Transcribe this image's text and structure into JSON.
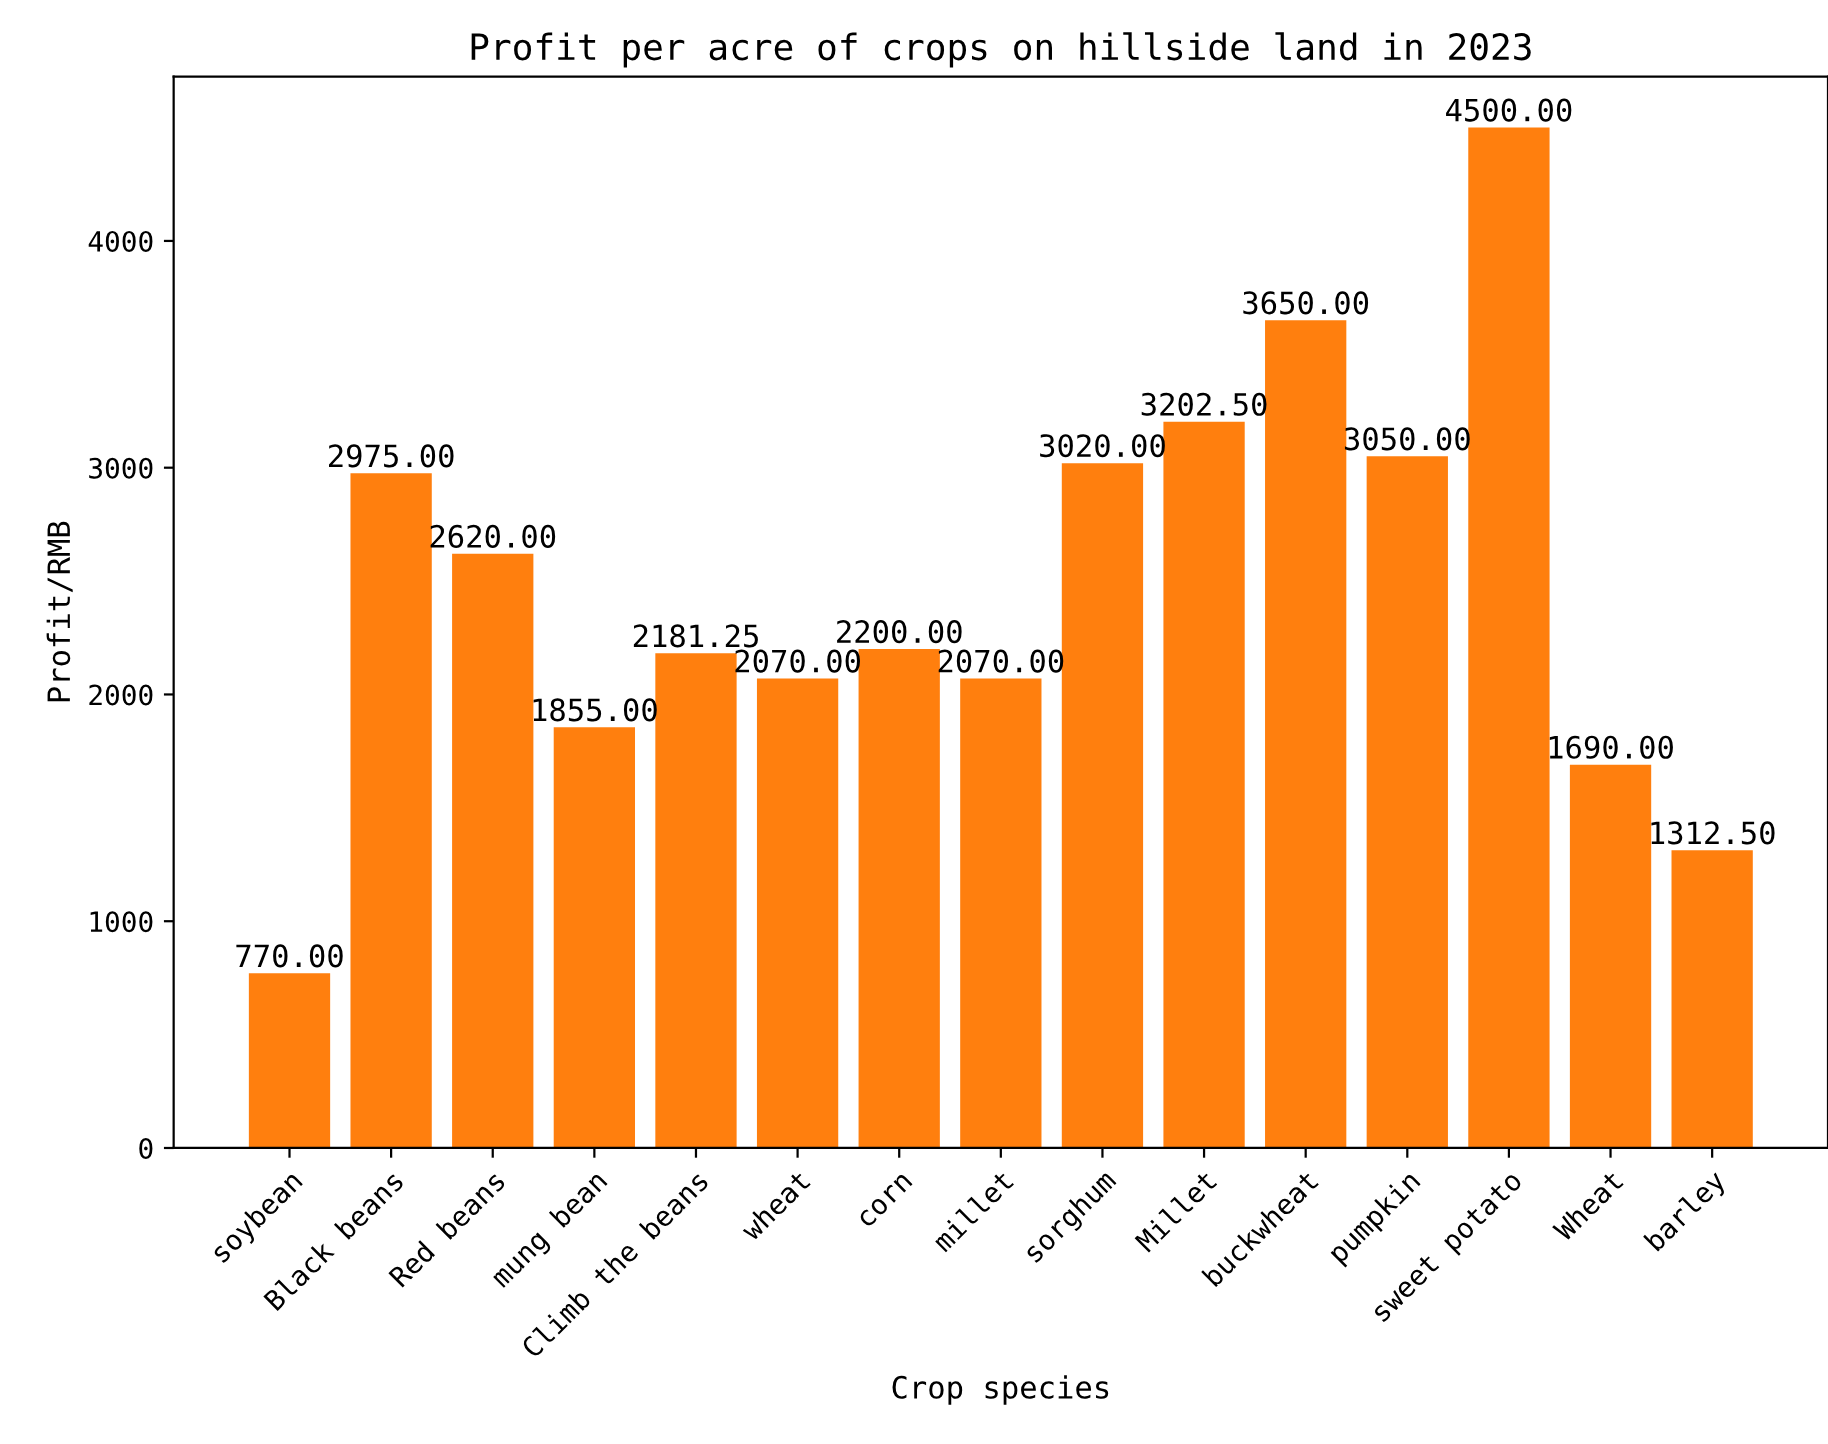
{
  "chart_data": {
    "type": "bar",
    "title": "Profit per acre of crops on hillside land in 2023",
    "xlabel": "Crop species",
    "ylabel": "Profit/RMB",
    "categories": [
      "soybean",
      "Black beans",
      "Red beans",
      "mung bean",
      "Climb the beans",
      "wheat",
      "corn",
      "millet",
      "sorghum",
      "Millet",
      "buckwheat",
      "pumpkin",
      "sweet potato",
      "Wheat",
      "barley"
    ],
    "values": [
      770,
      2975,
      2620,
      1855,
      2181.25,
      2070,
      2200,
      2070,
      3020,
      3202.5,
      3650,
      3050,
      4500,
      1690,
      1312.5
    ],
    "value_labels": [
      "770.00",
      "2975.00",
      "2620.00",
      "1855.00",
      "2181.25",
      "2070.00",
      "2200.00",
      "2070.00",
      "3020.00",
      "3202.50",
      "3650.00",
      "3050.00",
      "4500.00",
      "1690.00",
      "1312.50"
    ],
    "color": "#ff7f0e",
    "ylim": [
      0,
      4725
    ],
    "yticks": [
      0,
      1000,
      2000,
      3000,
      4000
    ],
    "grid": false,
    "legend": false
  }
}
